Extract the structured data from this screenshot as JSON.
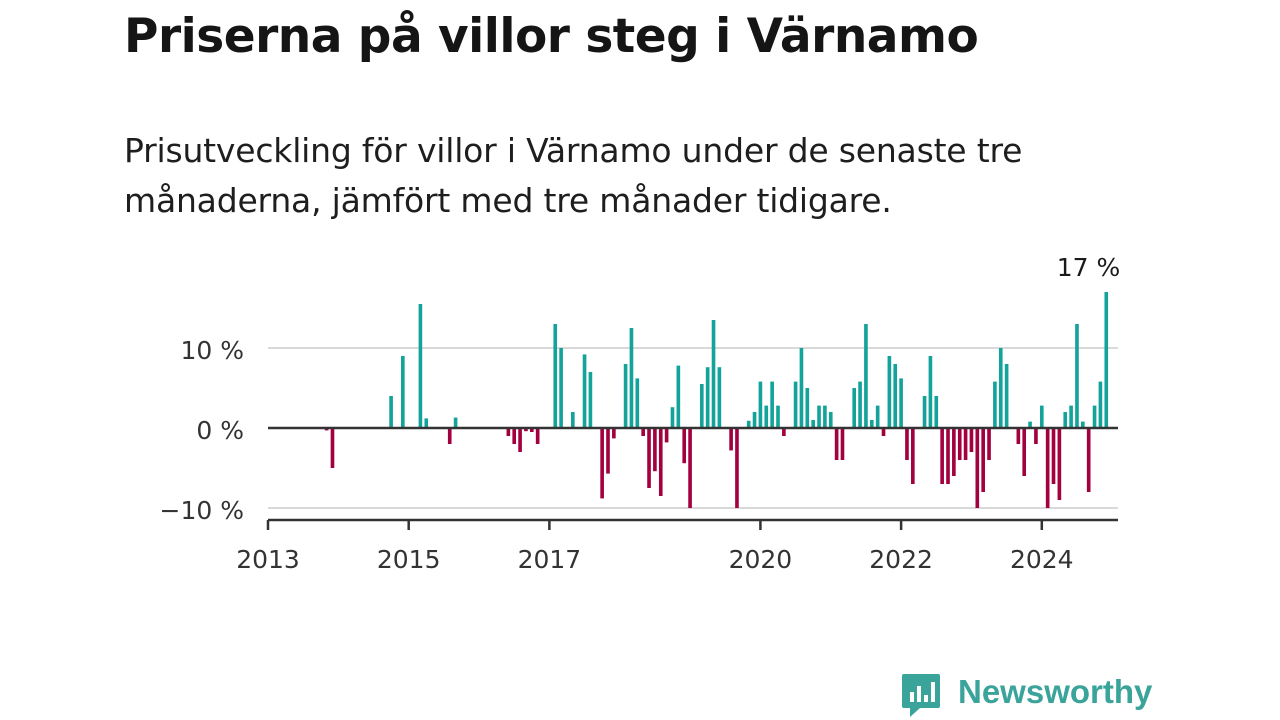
{
  "title": "Priserna på villor steg i Värnamo",
  "subtitle": "Prisutveckling för villor i Värnamo under de senaste tre månaderna, jämfört med tre månader tidigare.",
  "brand": {
    "name": "Newsworthy",
    "icon": "newsworthy-logo-icon"
  },
  "colors": {
    "positive": "#13a39a",
    "negative": "#a3003f",
    "axis": "#333333",
    "grid": "#d9d9d9"
  },
  "chart_data": {
    "type": "bar",
    "unit": "%",
    "x_range": [
      "2013-01",
      "2025-02"
    ],
    "ylim": [
      -11.5,
      17.5
    ],
    "y_ticks": [
      {
        "value": 10,
        "label": "10 %"
      },
      {
        "value": 0,
        "label": "0 %"
      },
      {
        "value": -10,
        "label": "−10 %"
      }
    ],
    "x_ticks": [
      {
        "value": "2013-01",
        "label": "2013"
      },
      {
        "value": "2015-01",
        "label": "2015"
      },
      {
        "value": "2017-01",
        "label": "2017"
      },
      {
        "value": "2020-01",
        "label": "2020"
      },
      {
        "value": "2022-01",
        "label": "2022"
      },
      {
        "value": "2024-01",
        "label": "2024"
      }
    ],
    "last_value_label": "17 %",
    "series": [
      {
        "values": [
          [
            "2013-11",
            -0.3
          ],
          [
            "2013-12",
            -5
          ],
          [
            "2014-10",
            4
          ],
          [
            "2014-12",
            9
          ],
          [
            "2015-03",
            15.5
          ],
          [
            "2015-04",
            1.2
          ],
          [
            "2015-08",
            -2
          ],
          [
            "2015-09",
            1.3
          ],
          [
            "2016-06",
            -1
          ],
          [
            "2016-07",
            -2
          ],
          [
            "2016-08",
            -3
          ],
          [
            "2016-09",
            -0.4
          ],
          [
            "2016-10",
            -0.5
          ],
          [
            "2016-11",
            -2
          ],
          [
            "2017-02",
            13
          ],
          [
            "2017-03",
            10
          ],
          [
            "2017-05",
            2
          ],
          [
            "2017-07",
            9.2
          ],
          [
            "2017-08",
            7
          ],
          [
            "2017-10",
            -8.8
          ],
          [
            "2017-11",
            -5.7
          ],
          [
            "2017-12",
            -1.3
          ],
          [
            "2018-02",
            8
          ],
          [
            "2018-03",
            12.5
          ],
          [
            "2018-04",
            6.2
          ],
          [
            "2018-05",
            -1
          ],
          [
            "2018-06",
            -7.5
          ],
          [
            "2018-07",
            -5.4
          ],
          [
            "2018-08",
            -8.5
          ],
          [
            "2018-09",
            -1.8
          ],
          [
            "2018-10",
            2.6
          ],
          [
            "2018-11",
            7.8
          ],
          [
            "2018-12",
            -4.4
          ],
          [
            "2019-01",
            -10
          ],
          [
            "2019-03",
            5.5
          ],
          [
            "2019-04",
            7.6
          ],
          [
            "2019-05",
            13.5
          ],
          [
            "2019-06",
            7.6
          ],
          [
            "2019-08",
            -2.8
          ],
          [
            "2019-09",
            -10
          ],
          [
            "2019-11",
            0.9
          ],
          [
            "2019-12",
            2
          ],
          [
            "2020-01",
            5.8
          ],
          [
            "2020-02",
            2.8
          ],
          [
            "2020-03",
            5.8
          ],
          [
            "2020-04",
            2.8
          ],
          [
            "2020-05",
            -1
          ],
          [
            "2020-07",
            5.8
          ],
          [
            "2020-08",
            10
          ],
          [
            "2020-09",
            5
          ],
          [
            "2020-10",
            1
          ],
          [
            "2020-11",
            2.8
          ],
          [
            "2020-12",
            2.8
          ],
          [
            "2021-01",
            2
          ],
          [
            "2021-02",
            -4
          ],
          [
            "2021-03",
            -4
          ],
          [
            "2021-05",
            5
          ],
          [
            "2021-06",
            5.8
          ],
          [
            "2021-07",
            13
          ],
          [
            "2021-08",
            1
          ],
          [
            "2021-09",
            2.8
          ],
          [
            "2021-10",
            -1
          ],
          [
            "2021-11",
            9
          ],
          [
            "2021-12",
            8
          ],
          [
            "2022-01",
            6.2
          ],
          [
            "2022-02",
            -4
          ],
          [
            "2022-03",
            -7
          ],
          [
            "2022-05",
            4
          ],
          [
            "2022-06",
            9
          ],
          [
            "2022-07",
            4
          ],
          [
            "2022-08",
            -7
          ],
          [
            "2022-09",
            -7
          ],
          [
            "2022-10",
            -6
          ],
          [
            "2022-11",
            -4
          ],
          [
            "2022-12",
            -4
          ],
          [
            "2023-01",
            -3
          ],
          [
            "2023-02",
            -10
          ],
          [
            "2023-03",
            -8
          ],
          [
            "2023-04",
            -4
          ],
          [
            "2023-05",
            5.8
          ],
          [
            "2023-06",
            10
          ],
          [
            "2023-07",
            8
          ],
          [
            "2023-09",
            -2
          ],
          [
            "2023-10",
            -6
          ],
          [
            "2023-11",
            0.8
          ],
          [
            "2024-01",
            2.8
          ],
          [
            "2023-12",
            -2
          ],
          [
            "2024-02",
            -10
          ],
          [
            "2024-03",
            -7
          ],
          [
            "2024-04",
            -9
          ],
          [
            "2024-05",
            2
          ],
          [
            "2024-06",
            2.8
          ],
          [
            "2024-07",
            13
          ],
          [
            "2024-08",
            0.8
          ],
          [
            "2024-09",
            -8
          ],
          [
            "2024-10",
            2.8
          ],
          [
            "2024-11",
            5.8
          ],
          [
            "2024-12",
            17
          ]
        ]
      }
    ]
  }
}
